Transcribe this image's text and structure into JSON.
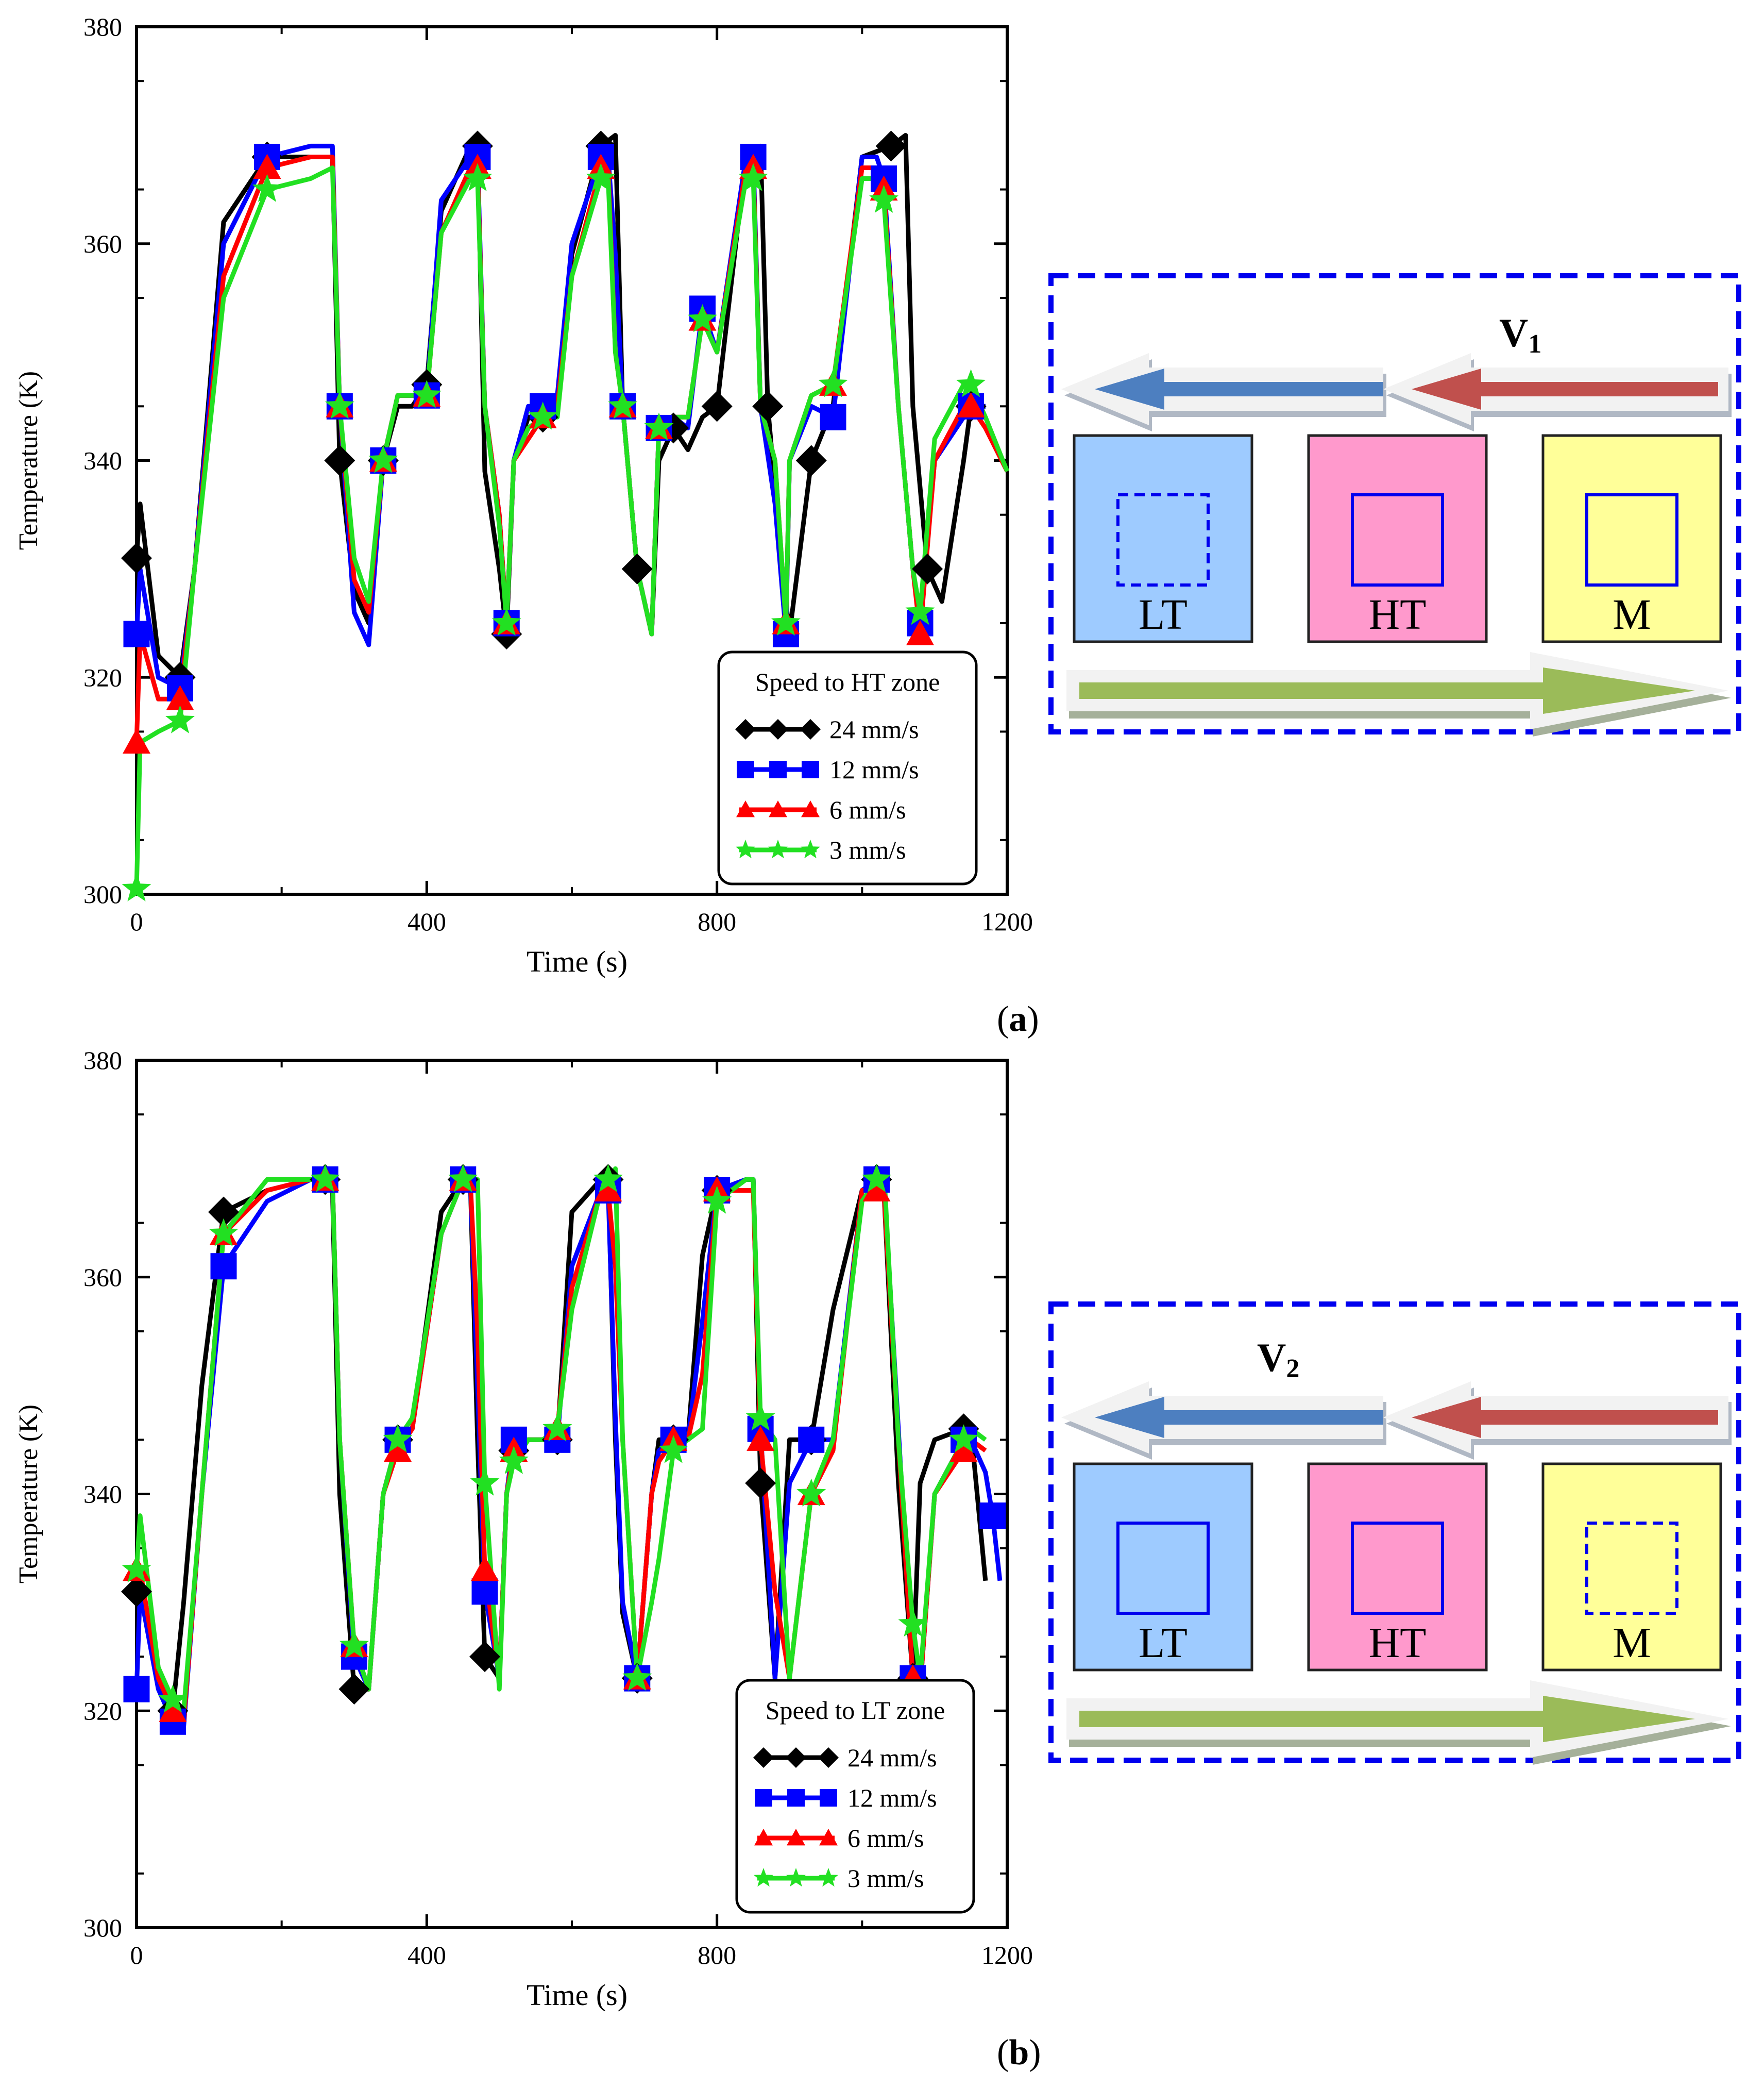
{
  "panels": [
    {
      "label_open": "(",
      "label_letter": "a",
      "label_close": ")",
      "diagram": {
        "velocity_letter": "V",
        "velocity_sub": "1",
        "boxes": [
          {
            "label": "LT",
            "fill": "#9ecbff",
            "inner": "dashed"
          },
          {
            "label": "HT",
            "fill": "#ff99cc",
            "inner": "solid"
          },
          {
            "label": "M",
            "fill": "#ffff99",
            "inner": "solid"
          }
        ]
      }
    },
    {
      "label_open": "(",
      "label_letter": "b",
      "label_close": ")",
      "diagram": {
        "velocity_letter": "V",
        "velocity_sub": "2",
        "boxes": [
          {
            "label": "LT",
            "fill": "#9ecbff",
            "inner": "solid"
          },
          {
            "label": "HT",
            "fill": "#ff99cc",
            "inner": "solid"
          },
          {
            "label": "M",
            "fill": "#ffff99",
            "inner": "dashed"
          }
        ]
      }
    }
  ],
  "chart_data": [
    {
      "type": "line",
      "title": "",
      "xlabel": "Time (s)",
      "ylabel": "Temperature (K)",
      "xlim": [
        0,
        1200
      ],
      "ylim": [
        300,
        380
      ],
      "xticks": [
        0,
        400,
        800,
        1200
      ],
      "yticks": [
        300,
        320,
        340,
        360,
        380
      ],
      "legend_title": "Speed to HT zone",
      "legend_position": "bottom-right",
      "series": [
        {
          "name": "24 mm/s",
          "color": "#000000",
          "marker": "diamond",
          "x": [
            0,
            5,
            30,
            60,
            80,
            120,
            180,
            240,
            270,
            280,
            300,
            320,
            340,
            360,
            380,
            400,
            420,
            460,
            470,
            480,
            500,
            510,
            520,
            540,
            560,
            580,
            600,
            640,
            660,
            670,
            690,
            710,
            720,
            740,
            760,
            780,
            800,
            840,
            860,
            870,
            890,
            900,
            930,
            960,
            1000,
            1040,
            1060,
            1070,
            1090,
            1110,
            1140,
            1150,
            1170
          ],
          "y": [
            331,
            336,
            322,
            320,
            330,
            362,
            368,
            368,
            368,
            340,
            328,
            325,
            340,
            345,
            345,
            347,
            363,
            369,
            369,
            339,
            330,
            324,
            340,
            344,
            344,
            345,
            359,
            369,
            370,
            345,
            330,
            324,
            340,
            343,
            341,
            344,
            345,
            368,
            369,
            345,
            330,
            324,
            340,
            345,
            368,
            369,
            370,
            345,
            330,
            327,
            340,
            345,
            345
          ]
        },
        {
          "name": "12 mm/s",
          "color": "#0000ff",
          "marker": "square",
          "x": [
            0,
            5,
            30,
            60,
            80,
            120,
            180,
            240,
            270,
            280,
            300,
            320,
            340,
            360,
            380,
            400,
            420,
            460,
            470,
            480,
            500,
            510,
            520,
            540,
            560,
            580,
            600,
            640,
            650,
            660,
            670,
            690,
            710,
            720,
            740,
            760,
            780,
            800,
            840,
            850,
            860,
            880,
            895,
            900,
            930,
            960,
            1000,
            1020,
            1030,
            1050,
            1070,
            1080,
            1100,
            1140,
            1150,
            1170
          ],
          "y": [
            324,
            330,
            320,
            319,
            330,
            360,
            368,
            369,
            369,
            345,
            326,
            323,
            340,
            346,
            346,
            346,
            364,
            368,
            368,
            345,
            335,
            325,
            340,
            345,
            345,
            346,
            360,
            368,
            368,
            359,
            345,
            330,
            324,
            343,
            344,
            343,
            354,
            350,
            368,
            368,
            345,
            336,
            324,
            340,
            345,
            344,
            368,
            368,
            366,
            345,
            330,
            325,
            340,
            344,
            345,
            345
          ]
        },
        {
          "name": "6 mm/s",
          "color": "#ff0000",
          "marker": "triangle",
          "x": [
            0,
            5,
            30,
            60,
            80,
            120,
            180,
            240,
            270,
            280,
            300,
            320,
            340,
            360,
            380,
            400,
            420,
            460,
            470,
            480,
            500,
            510,
            520,
            540,
            560,
            580,
            600,
            640,
            650,
            660,
            670,
            690,
            710,
            720,
            740,
            760,
            780,
            800,
            840,
            850,
            860,
            880,
            895,
            900,
            930,
            960,
            1000,
            1020,
            1030,
            1050,
            1070,
            1080,
            1100,
            1140,
            1150,
            1170,
            1200
          ],
          "y": [
            314,
            324,
            318,
            318,
            330,
            357,
            367,
            368,
            368,
            345,
            329,
            326,
            340,
            346,
            346,
            346,
            361,
            367,
            367,
            345,
            335,
            325,
            340,
            342,
            344,
            345,
            357,
            367,
            367,
            350,
            345,
            330,
            324,
            343,
            344,
            344,
            353,
            350,
            367,
            367,
            345,
            340,
            325,
            340,
            346,
            347,
            367,
            367,
            365,
            345,
            330,
            324,
            340,
            345,
            345,
            343,
            339
          ]
        },
        {
          "name": "3 mm/s",
          "color": "#22e022",
          "marker": "star",
          "x": [
            0,
            5,
            30,
            60,
            80,
            120,
            180,
            240,
            270,
            280,
            300,
            320,
            340,
            360,
            380,
            400,
            420,
            460,
            470,
            480,
            500,
            510,
            520,
            540,
            560,
            580,
            600,
            640,
            650,
            660,
            670,
            690,
            710,
            720,
            740,
            760,
            780,
            800,
            840,
            850,
            860,
            880,
            895,
            900,
            930,
            960,
            1000,
            1020,
            1030,
            1050,
            1070,
            1080,
            1100,
            1140,
            1150,
            1170,
            1200
          ],
          "y": [
            300.5,
            314,
            315,
            316,
            330,
            355,
            365,
            366,
            367,
            345,
            331,
            327,
            340,
            346,
            346,
            346,
            361,
            366,
            366,
            345,
            334,
            325,
            340,
            343,
            344,
            344,
            357,
            366,
            366,
            350,
            345,
            330,
            324,
            343,
            344,
            344,
            353,
            350,
            366,
            366,
            345,
            340,
            325,
            340,
            346,
            347,
            366,
            366,
            364,
            345,
            330,
            326,
            342,
            347,
            347,
            344,
            339
          ]
        }
      ]
    },
    {
      "type": "line",
      "title": "",
      "xlabel": "Time (s)",
      "ylabel": "Temperature (K)",
      "xlim": [
        0,
        1200
      ],
      "ylim": [
        300,
        380
      ],
      "xticks": [
        0,
        400,
        800,
        1200
      ],
      "yticks": [
        300,
        320,
        340,
        360,
        380
      ],
      "legend_title": "Speed to LT zone",
      "legend_position": "bottom-right",
      "series": [
        {
          "name": "24 mm/s",
          "color": "#000000",
          "marker": "diamond",
          "x": [
            0,
            5,
            30,
            50,
            65,
            90,
            120,
            180,
            240,
            260,
            270,
            280,
            300,
            320,
            340,
            360,
            380,
            420,
            450,
            460,
            470,
            480,
            500,
            510,
            520,
            540,
            560,
            580,
            600,
            640,
            650,
            660,
            670,
            690,
            710,
            720,
            740,
            760,
            780,
            800,
            840,
            850,
            860,
            880,
            900,
            930,
            960,
            1000,
            1020,
            1030,
            1050,
            1070,
            1080,
            1100,
            1140,
            1150,
            1170
          ],
          "y": [
            331,
            332,
            324,
            320,
            330,
            350,
            366,
            368,
            369,
            369,
            368,
            340,
            322,
            322,
            340,
            345,
            346,
            366,
            369,
            369,
            345,
            325,
            323,
            340,
            344,
            345,
            345,
            345,
            366,
            369,
            369,
            345,
            329,
            323,
            340,
            345,
            345,
            345,
            362,
            368,
            369,
            369,
            341,
            323,
            345,
            345,
            357,
            368,
            369,
            368,
            341,
            323,
            341,
            345,
            346,
            346,
            332
          ]
        },
        {
          "name": "12 mm/s",
          "color": "#0000ff",
          "marker": "square",
          "x": [
            0,
            5,
            30,
            50,
            65,
            90,
            120,
            180,
            240,
            260,
            270,
            280,
            300,
            320,
            340,
            360,
            380,
            420,
            450,
            460,
            470,
            480,
            500,
            510,
            520,
            540,
            560,
            580,
            600,
            640,
            650,
            660,
            670,
            690,
            710,
            720,
            740,
            760,
            780,
            800,
            840,
            850,
            860,
            880,
            900,
            930,
            960,
            1000,
            1020,
            1030,
            1050,
            1070,
            1080,
            1100,
            1140,
            1150,
            1170,
            1180,
            1190
          ],
          "y": [
            322,
            331,
            322,
            319,
            318.5,
            340,
            361,
            367,
            369,
            369,
            369,
            345,
            325,
            322,
            340,
            345,
            346,
            364,
            369,
            369,
            350,
            331,
            323,
            340,
            345,
            345,
            345,
            345,
            361,
            368,
            368,
            347,
            330,
            323,
            340,
            344,
            345,
            345,
            356,
            368,
            369,
            369,
            346,
            323,
            341,
            345,
            345,
            368,
            369,
            369,
            346,
            323,
            322,
            340,
            345,
            345,
            342,
            338,
            332
          ]
        },
        {
          "name": "6 mm/s",
          "color": "#ff0000",
          "marker": "triangle",
          "x": [
            0,
            5,
            30,
            50,
            65,
            90,
            120,
            180,
            240,
            260,
            270,
            280,
            300,
            320,
            340,
            360,
            380,
            420,
            450,
            460,
            470,
            480,
            500,
            510,
            520,
            540,
            560,
            580,
            600,
            640,
            650,
            660,
            670,
            690,
            710,
            720,
            740,
            760,
            780,
            800,
            840,
            850,
            860,
            880,
            900,
            930,
            960,
            1000,
            1020,
            1030,
            1050,
            1070,
            1080,
            1100,
            1140,
            1150,
            1170
          ],
          "y": [
            333,
            333,
            323,
            320,
            319,
            340,
            364,
            368,
            369,
            369,
            369,
            345,
            326,
            322,
            340,
            344,
            346,
            364,
            369,
            369,
            355,
            333,
            323,
            340,
            344,
            345,
            345,
            346,
            359,
            368,
            368,
            361,
            345,
            323,
            340,
            343,
            345,
            345,
            351,
            368,
            368,
            368,
            345,
            331,
            323,
            340,
            344,
            368,
            368,
            368,
            345,
            323,
            322,
            340,
            344,
            345,
            344
          ]
        },
        {
          "name": "3 mm/s",
          "color": "#22e022",
          "marker": "star",
          "x": [
            0,
            5,
            30,
            50,
            65,
            90,
            120,
            180,
            240,
            260,
            270,
            280,
            300,
            320,
            340,
            360,
            380,
            420,
            450,
            460,
            470,
            480,
            500,
            510,
            520,
            540,
            560,
            580,
            600,
            640,
            650,
            660,
            670,
            690,
            710,
            720,
            740,
            760,
            780,
            800,
            840,
            850,
            860,
            880,
            900,
            930,
            960,
            1000,
            1020,
            1030,
            1050,
            1070,
            1080,
            1100,
            1140,
            1150,
            1170
          ],
          "y": [
            333,
            338,
            324,
            321,
            320,
            340,
            364,
            369,
            369,
            369,
            369,
            345,
            326,
            322,
            340,
            345,
            347,
            364,
            369,
            369,
            369,
            341,
            322,
            340,
            343,
            345,
            345,
            346,
            357,
            368,
            369,
            370,
            345,
            323,
            330,
            334,
            344,
            345,
            346,
            367,
            369,
            369,
            347,
            345,
            323,
            340,
            345,
            367,
            369,
            370,
            345,
            328,
            323,
            340,
            345,
            346,
            345
          ]
        }
      ]
    }
  ]
}
